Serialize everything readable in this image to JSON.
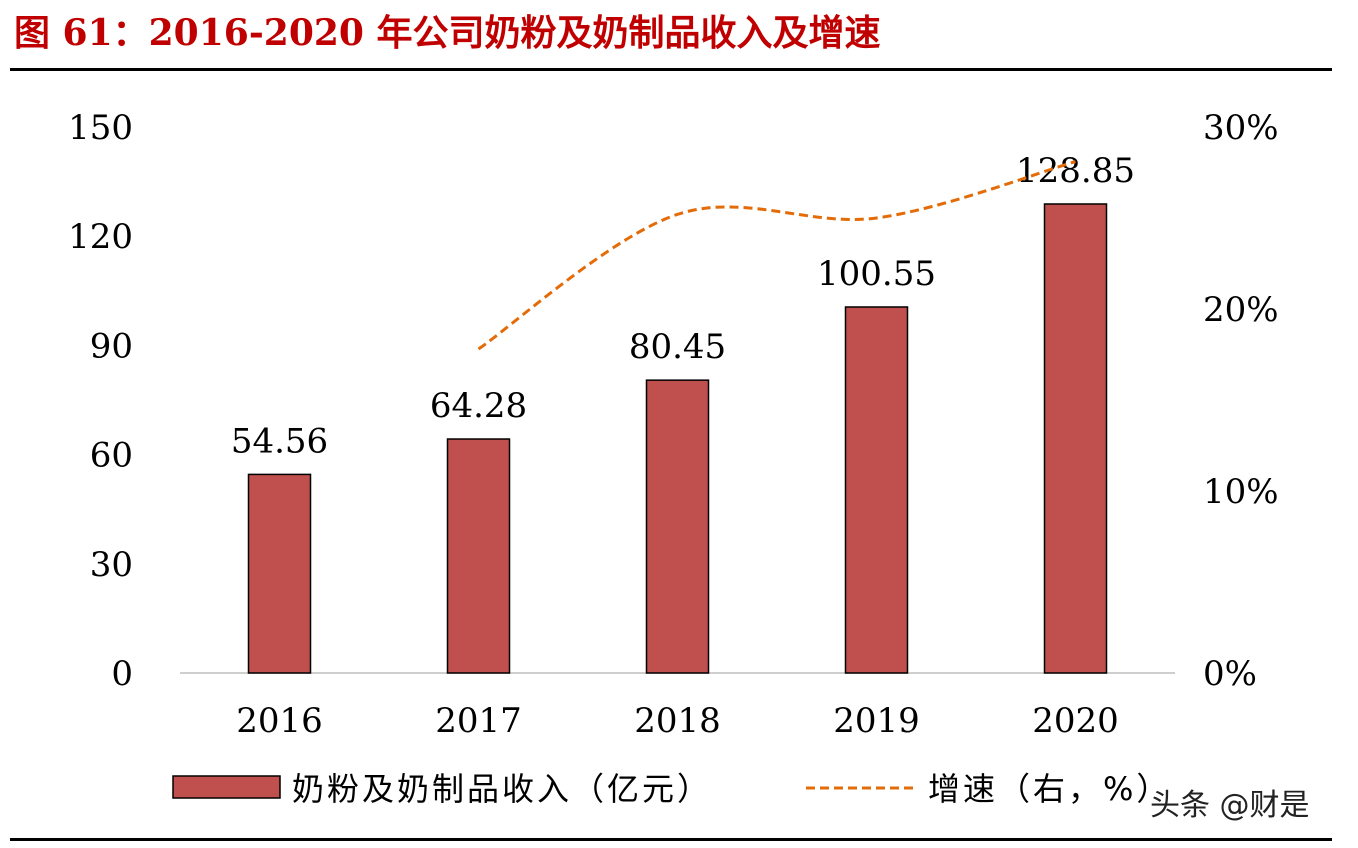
{
  "title": "图 61：2016-2020 年公司奶粉及奶制品收入及增速",
  "watermark": "头条 @财是",
  "chart_data": {
    "type": "bar+line",
    "categories": [
      "2016",
      "2017",
      "2018",
      "2019",
      "2020"
    ],
    "series": [
      {
        "name": "奶粉及奶制品收入（亿元）",
        "type": "bar",
        "axis": "left",
        "values": [
          54.56,
          64.28,
          80.45,
          100.55,
          128.85
        ],
        "labels": [
          "54.56",
          "64.28",
          "80.45",
          "100.55",
          "128.85"
        ],
        "color": "#c0504d"
      },
      {
        "name": "增速（右，%）",
        "type": "line",
        "style": "dashed",
        "axis": "right",
        "values": [
          null,
          17.8,
          25.2,
          25.0,
          28.1
        ],
        "color": "#e36c09"
      }
    ],
    "left_axis": {
      "ylim": [
        0,
        150
      ],
      "ticks": [
        "0",
        "30",
        "60",
        "90",
        "120",
        "150"
      ]
    },
    "right_axis": {
      "ylim": [
        0,
        30
      ],
      "ticks": [
        "0%",
        "10%",
        "20%",
        "30%"
      ]
    },
    "legend": "bottom",
    "grid": false
  }
}
